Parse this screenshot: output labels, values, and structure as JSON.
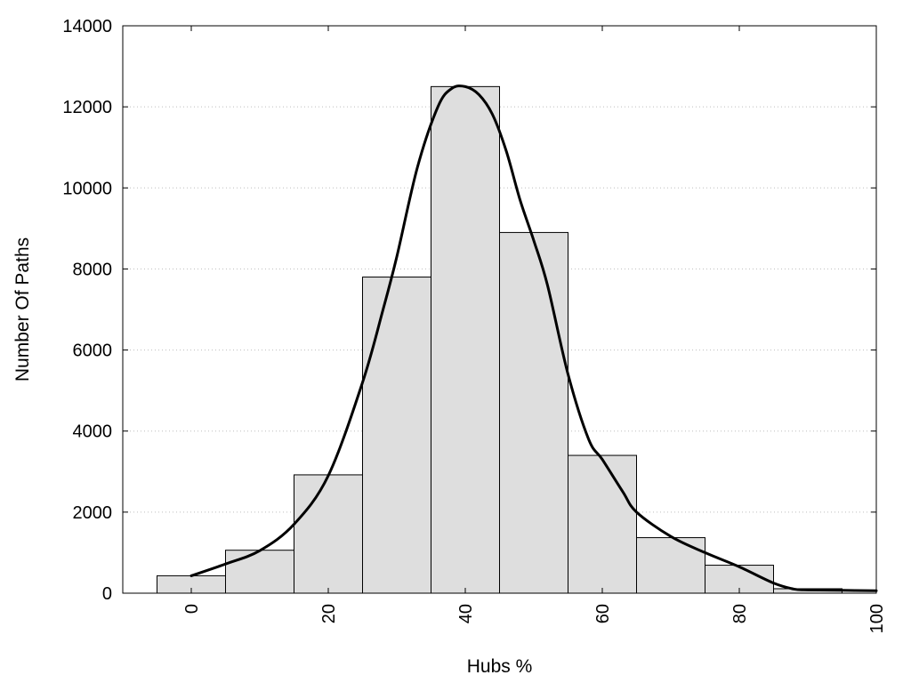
{
  "chart_data": {
    "type": "bar",
    "subtype": "histogram with density curve",
    "title": "",
    "xlabel": "Hubs %",
    "ylabel": "Number Of Paths",
    "xlim": [
      -10,
      100
    ],
    "ylim": [
      0,
      14000
    ],
    "x_ticks": [
      0,
      20,
      40,
      60,
      80,
      100
    ],
    "y_ticks": [
      0,
      2000,
      4000,
      6000,
      8000,
      10000,
      12000,
      14000
    ],
    "x_tick_labels": [
      "0",
      "20",
      "40",
      "60",
      "80",
      "100"
    ],
    "y_tick_labels": [
      "0",
      "2000",
      "4000",
      "6000",
      "8000",
      "10000",
      "12000",
      "14000"
    ],
    "x_tick_rotation_deg": -90,
    "bin_width": 10,
    "bins": [
      {
        "center": 0,
        "value": 430
      },
      {
        "center": 10,
        "value": 1060
      },
      {
        "center": 20,
        "value": 2920
      },
      {
        "center": 30,
        "value": 7800
      },
      {
        "center": 40,
        "value": 12500
      },
      {
        "center": 50,
        "value": 8900
      },
      {
        "center": 60,
        "value": 3400
      },
      {
        "center": 70,
        "value": 1370
      },
      {
        "center": 80,
        "value": 690
      },
      {
        "center": 90,
        "value": 110
      }
    ],
    "density_curve": {
      "x": [
        0,
        5,
        10,
        15,
        20,
        25,
        28,
        30,
        33,
        36,
        38,
        40,
        42,
        44,
        46,
        48,
        50,
        52,
        55,
        58,
        60,
        63,
        65,
        70,
        75,
        80,
        85,
        88,
        90,
        95,
        100
      ],
      "y": [
        430,
        720,
        1050,
        1700,
        2900,
        5200,
        7000,
        8300,
        10500,
        12000,
        12450,
        12500,
        12300,
        11800,
        10900,
        9700,
        8700,
        7600,
        5400,
        3800,
        3300,
        2500,
        2000,
        1400,
        1000,
        650,
        250,
        100,
        80,
        70,
        60
      ]
    },
    "grid": {
      "y": true,
      "x": false,
      "style": "dotted"
    },
    "legend": "none",
    "colors": {
      "bar_fill": "#dedede",
      "bar_edge": "#000000",
      "curve": "#000000",
      "grid": "#bdbdbd"
    }
  }
}
